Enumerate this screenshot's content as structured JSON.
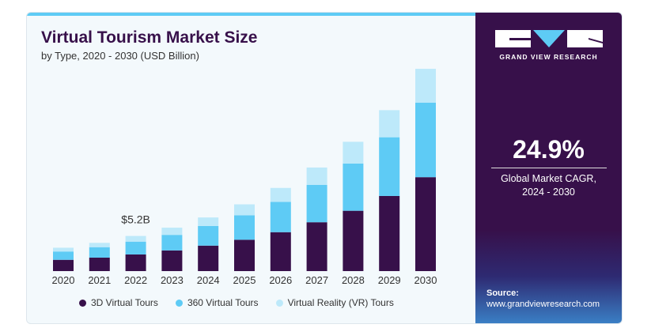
{
  "chart_data": {
    "type": "bar",
    "stacked": true,
    "title": "Virtual Tourism Market Size",
    "subtitle": "by Type, 2020 - 2030 (USD Billion)",
    "xlabel": "",
    "ylabel": "USD Billion",
    "categories": [
      "2020",
      "2021",
      "2022",
      "2023",
      "2024",
      "2025",
      "2026",
      "2027",
      "2028",
      "2029",
      "2030"
    ],
    "series": [
      {
        "name": "3D Virtual Tours",
        "color": "#37104a",
        "values": [
          1.67,
          1.99,
          2.46,
          3.06,
          3.77,
          4.64,
          5.76,
          7.23,
          8.93,
          11.12,
          13.9
        ]
      },
      {
        "name": "360 Virtual Tours",
        "color": "#5ecbf5",
        "values": [
          1.23,
          1.55,
          1.9,
          2.3,
          2.9,
          3.61,
          4.49,
          5.52,
          6.99,
          8.69,
          11.04
        ]
      },
      {
        "name": "Virtual Reality (VR) Tours",
        "color": "#bde9fa",
        "values": [
          0.56,
          0.64,
          0.84,
          1.07,
          1.27,
          1.63,
          2.06,
          2.58,
          3.22,
          4.01,
          5.0
        ]
      }
    ],
    "annotations": [
      {
        "category": "2022",
        "text": "$5.2B"
      }
    ],
    "ylim": [
      0,
      31
    ],
    "grid": false,
    "legend": "bottom"
  },
  "panel": {
    "brand": "GRAND VIEW RESEARCH",
    "cagr": "24.9%",
    "cagr_label_1": "Global Market CAGR,",
    "cagr_label_2": "2024 - 2030",
    "source_label": "Source:",
    "source_url": "www.grandviewresearch.com"
  }
}
